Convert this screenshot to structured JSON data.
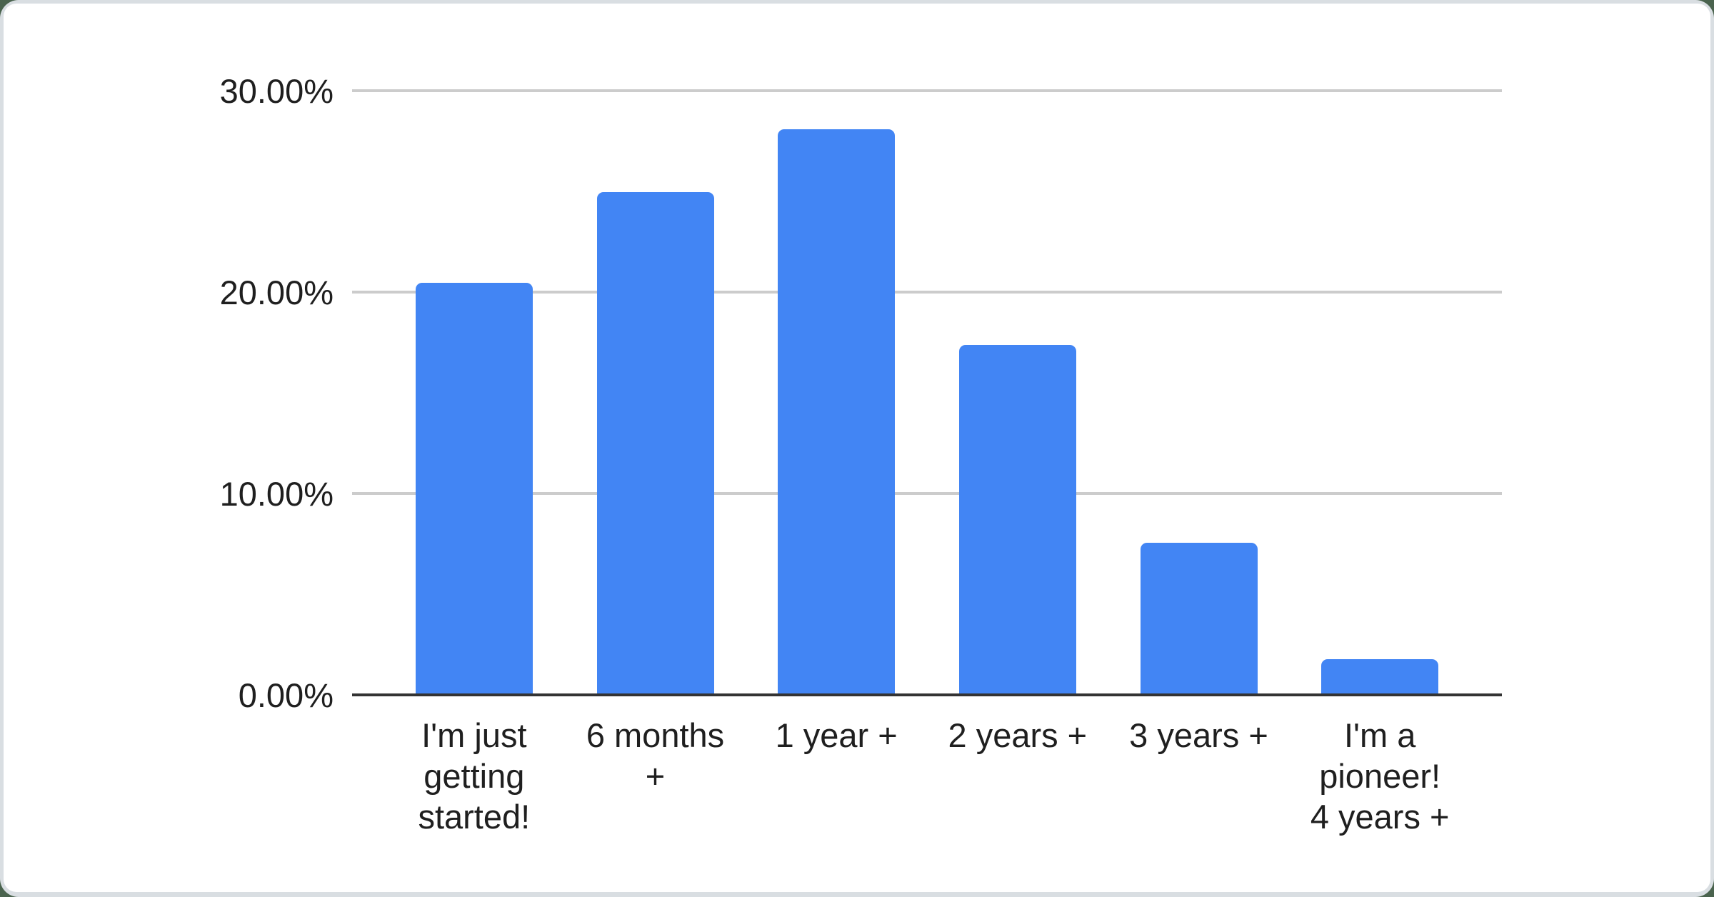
{
  "window": {
    "page_background_color": "#4a634e",
    "frame_color": "#d9dee2",
    "card_color": "#ffffff"
  },
  "chart_data": {
    "type": "bar",
    "title": "",
    "xlabel": "",
    "ylabel": "",
    "categories": [
      "I'm just getting started!",
      "6 months +",
      "1 year +",
      "2 years +",
      "3 years +",
      "I'm a pioneer! 4 years +"
    ],
    "category_label_lines": [
      "I'm just\ngetting\nstarted!",
      "6 months\n+",
      "1 year +",
      "2 years +",
      "3 years +",
      "I'm a\npioneer!\n4 years +"
    ],
    "values": [
      20.4,
      24.9,
      28.0,
      17.3,
      7.5,
      1.7
    ],
    "unit": "%",
    "ylim": [
      0,
      30
    ],
    "ytick_values": [
      30,
      20,
      10,
      0
    ],
    "ytick_labels": [
      "30.00%",
      "20.00%",
      "10.00%",
      "0.00%"
    ],
    "grid": true,
    "legend_position": "none",
    "bar_color": "#4285f4",
    "gridline_color": "#cccccc",
    "axis_line_color": "#333333",
    "label_color": "#1f1f1f"
  }
}
